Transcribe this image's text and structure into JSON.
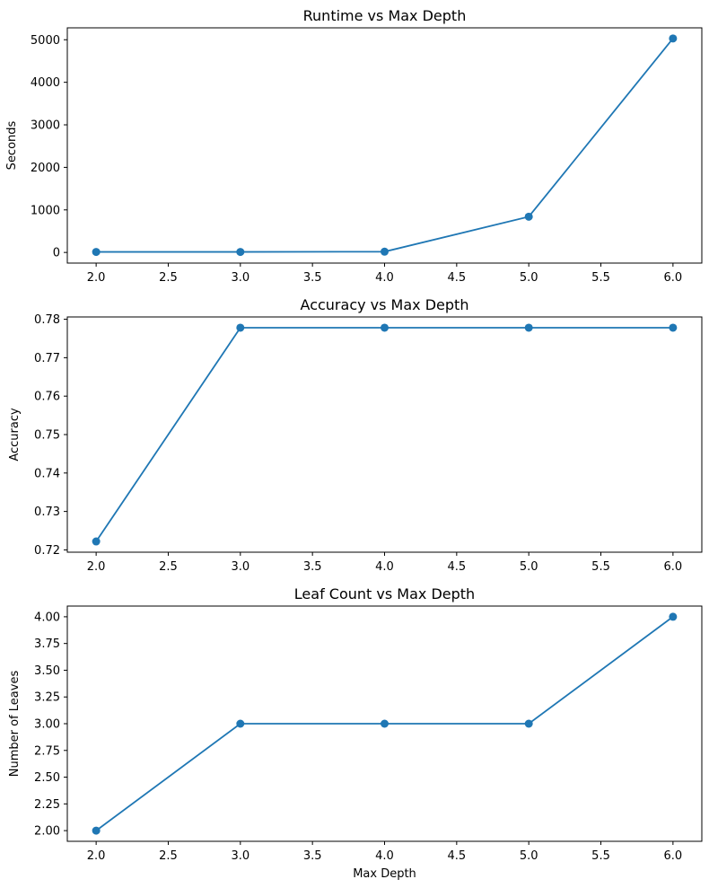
{
  "chart_data": [
    {
      "type": "line",
      "title": "Runtime vs Max Depth",
      "xlabel": "",
      "ylabel": "Seconds",
      "x": [
        2.0,
        3.0,
        4.0,
        5.0,
        6.0
      ],
      "series": [
        {
          "values": [
            12,
            12,
            18,
            840,
            5030
          ],
          "marker": "circle"
        }
      ],
      "xlim": [
        1.8,
        6.2
      ],
      "ylim": [
        -250,
        5280
      ],
      "xticks": [
        2.0,
        2.5,
        3.0,
        3.5,
        4.0,
        4.5,
        5.0,
        5.5,
        6.0
      ],
      "xtick_labels": [
        "2.0",
        "2.5",
        "3.0",
        "3.5",
        "4.0",
        "4.5",
        "5.0",
        "5.5",
        "6.0"
      ],
      "yticks": [
        0,
        1000,
        2000,
        3000,
        4000,
        5000
      ],
      "ytick_labels": [
        "0",
        "1000",
        "2000",
        "3000",
        "4000",
        "5000"
      ],
      "grid": false
    },
    {
      "type": "line",
      "title": "Accuracy vs Max Depth",
      "xlabel": "",
      "ylabel": "Accuracy",
      "x": [
        2.0,
        3.0,
        4.0,
        5.0,
        6.0
      ],
      "series": [
        {
          "values": [
            0.7222,
            0.7778,
            0.7778,
            0.7778,
            0.7778
          ],
          "marker": "circle"
        }
      ],
      "xlim": [
        1.8,
        6.2
      ],
      "ylim": [
        0.7194,
        0.7806
      ],
      "xticks": [
        2.0,
        2.5,
        3.0,
        3.5,
        4.0,
        4.5,
        5.0,
        5.5,
        6.0
      ],
      "xtick_labels": [
        "2.0",
        "2.5",
        "3.0",
        "3.5",
        "4.0",
        "4.5",
        "5.0",
        "5.5",
        "6.0"
      ],
      "yticks": [
        0.72,
        0.73,
        0.74,
        0.75,
        0.76,
        0.77,
        0.78
      ],
      "ytick_labels": [
        "0.72",
        "0.73",
        "0.74",
        "0.75",
        "0.76",
        "0.77",
        "0.78"
      ],
      "grid": false
    },
    {
      "type": "line",
      "title": "Leaf Count vs Max Depth",
      "xlabel": "Max Depth",
      "ylabel": "Number of Leaves",
      "x": [
        2.0,
        3.0,
        4.0,
        5.0,
        6.0
      ],
      "series": [
        {
          "values": [
            2,
            3,
            3,
            3,
            4
          ],
          "marker": "circle"
        }
      ],
      "xlim": [
        1.8,
        6.2
      ],
      "ylim": [
        1.9,
        4.1
      ],
      "xticks": [
        2.0,
        2.5,
        3.0,
        3.5,
        4.0,
        4.5,
        5.0,
        5.5,
        6.0
      ],
      "xtick_labels": [
        "2.0",
        "2.5",
        "3.0",
        "3.5",
        "4.0",
        "4.5",
        "5.0",
        "5.5",
        "6.0"
      ],
      "yticks": [
        2.0,
        2.25,
        2.5,
        2.75,
        3.0,
        3.25,
        3.5,
        3.75,
        4.0
      ],
      "ytick_labels": [
        "2.00",
        "2.25",
        "2.50",
        "2.75",
        "3.00",
        "3.25",
        "3.50",
        "3.75",
        "4.00"
      ],
      "grid": false
    }
  ],
  "colors": {
    "series": "#1f77b4",
    "axes": "#000000",
    "background": "#ffffff"
  }
}
